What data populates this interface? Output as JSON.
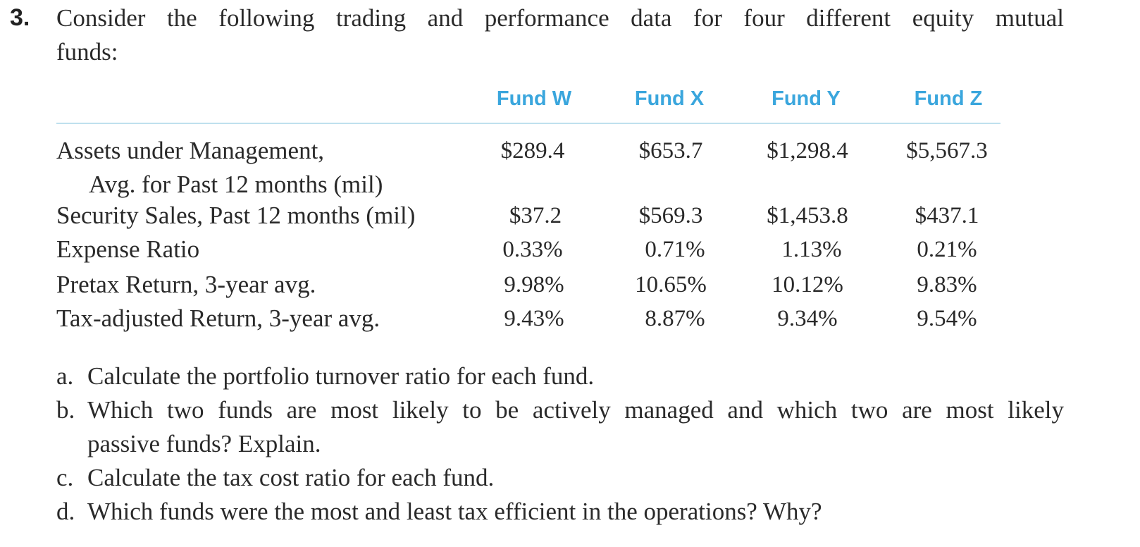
{
  "question": {
    "number": "3.",
    "text_line1": "Consider the following trading and performance data for four different equity mutual",
    "text_line2": "funds:"
  },
  "table": {
    "headers": [
      "Fund W",
      "Fund X",
      "Fund Y",
      "Fund Z"
    ],
    "rows": [
      {
        "label": "Assets under Management,",
        "sublabel": "Avg. for Past 12 months (mil)",
        "values": [
          "$289.4",
          "$653.7",
          "$1,298.4",
          "$5,567.3"
        ]
      },
      {
        "label": "Security Sales, Past 12 months (mil)",
        "values": [
          "$37.2",
          "$569.3",
          "$1,453.8",
          "$437.1"
        ]
      },
      {
        "label": "Expense Ratio",
        "values": [
          "0.33%",
          "0.71%",
          "1.13%",
          "0.21%"
        ]
      },
      {
        "label": "Pretax Return, 3-year avg.",
        "values": [
          "9.98%",
          "10.65%",
          "10.12%",
          "9.83%"
        ]
      },
      {
        "label": "Tax-adjusted Return, 3-year avg.",
        "values": [
          "9.43%",
          "8.87%",
          "9.34%",
          "9.54%"
        ]
      }
    ]
  },
  "parts": [
    {
      "letter": "a.",
      "text": "Calculate the portfolio turnover ratio for each fund."
    },
    {
      "letter": "b.",
      "text_line1": "Which two funds are most likely to be actively managed and which two are most likely",
      "text_line2": "passive funds? Explain."
    },
    {
      "letter": "c.",
      "text": "Calculate the tax cost ratio for each fund."
    },
    {
      "letter": "d.",
      "text": "Which funds were the most and least tax efficient in the operations? Why?"
    }
  ]
}
